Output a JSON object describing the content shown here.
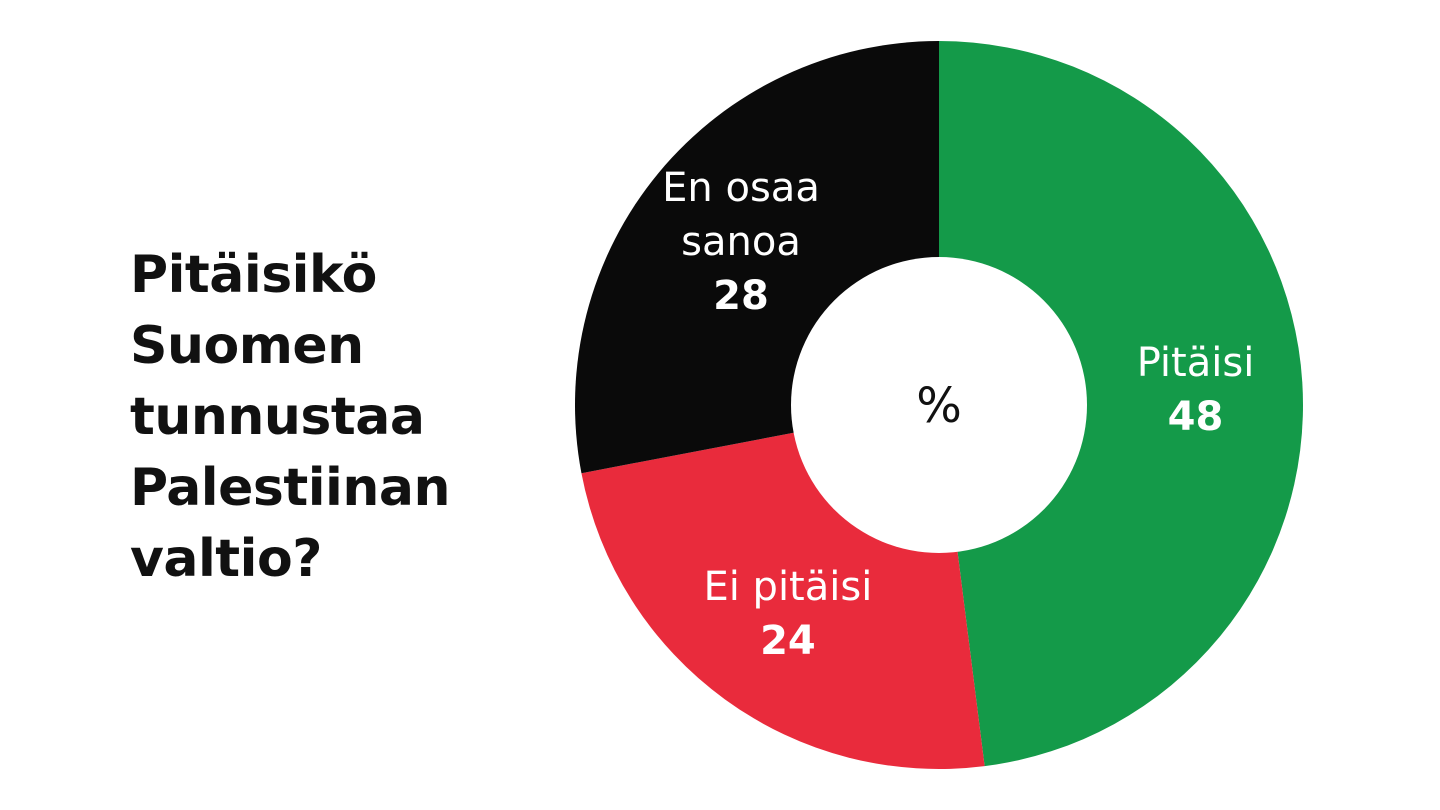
{
  "chart_data": {
    "type": "pie",
    "variant": "donut",
    "title_lines": [
      "Pitäisikö",
      "Suomen",
      "tunnustaa",
      "Palestiinan",
      "valtio?"
    ],
    "center_label": "%",
    "slices": [
      {
        "label_lines": [
          "Pitäisi"
        ],
        "value": 48,
        "value_text": "48",
        "color": "#149a49"
      },
      {
        "label_lines": [
          "Ei pitäisi"
        ],
        "value": 24,
        "value_text": "24",
        "color": "#e92b3c"
      },
      {
        "label_lines": [
          "En osaa",
          "sanoa"
        ],
        "value": 28,
        "value_text": "28",
        "color": "#0a0a0a"
      }
    ],
    "start_angle": "top",
    "direction": "clockwise",
    "legend": "none"
  }
}
